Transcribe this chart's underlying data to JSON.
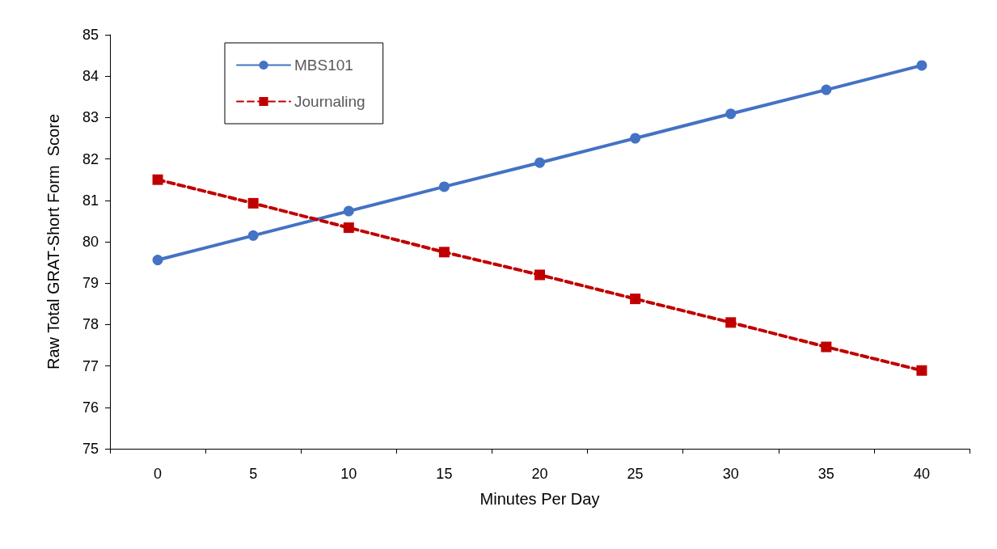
{
  "chart_data": {
    "type": "line",
    "xlabel": "Minutes Per Day",
    "ylabel": "Raw Total GRAT-Short Form  Score",
    "categories": [
      "0",
      "5",
      "10",
      "15",
      "20",
      "25",
      "30",
      "35",
      "40"
    ],
    "ylim": [
      75,
      85
    ],
    "yticks": [
      75,
      76,
      77,
      78,
      79,
      80,
      81,
      82,
      83,
      84,
      85
    ],
    "grid": false,
    "legend": "top left",
    "series": [
      {
        "name": "MBS101",
        "color": "#4472c4",
        "marker": "circle",
        "line_style": "solid",
        "values": [
          79.56,
          80.15,
          80.74,
          81.33,
          81.91,
          82.5,
          83.09,
          83.67,
          84.26
        ]
      },
      {
        "name": "Journaling",
        "color": "#c00000",
        "marker": "square",
        "line_style": "dashed",
        "values": [
          81.5,
          80.93,
          80.34,
          79.75,
          79.2,
          78.62,
          78.05,
          77.46,
          76.89
        ]
      }
    ]
  }
}
